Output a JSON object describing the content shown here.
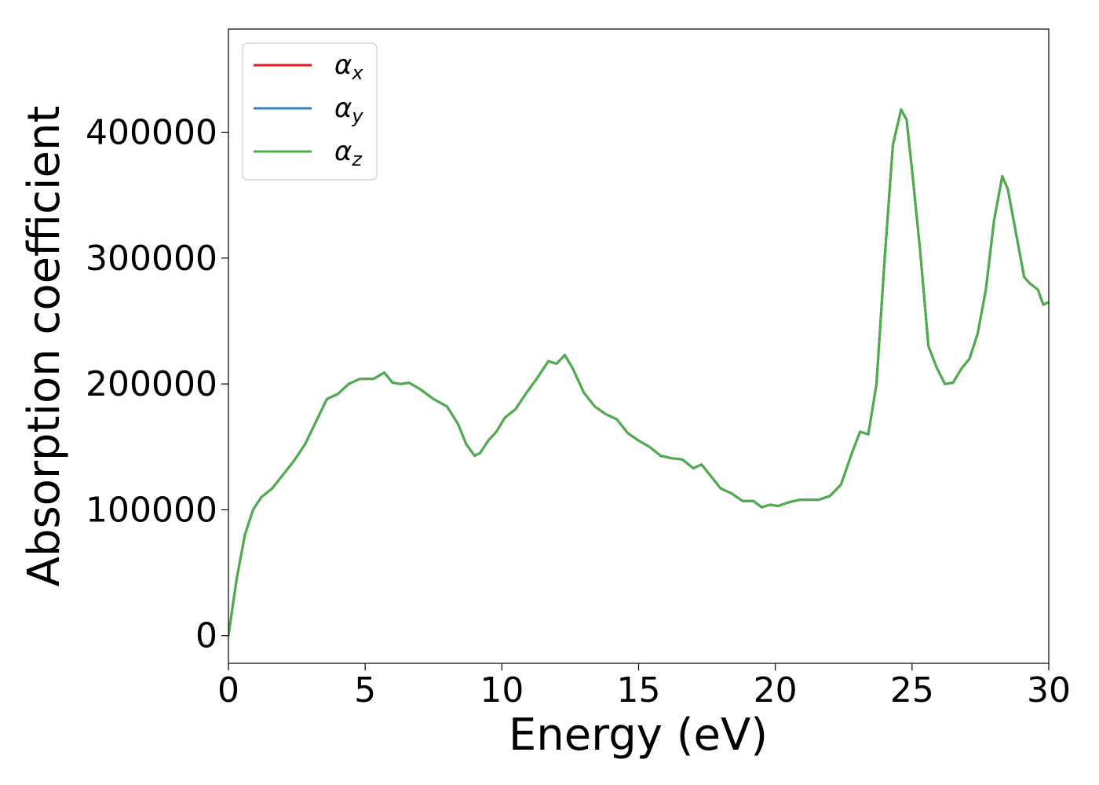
{
  "chart_data": {
    "type": "line",
    "title": "",
    "xlabel": "Energy (eV)",
    "ylabel": "Absorption coefficient",
    "xlim": [
      0,
      30
    ],
    "ylim": [
      -22000,
      482000
    ],
    "xticks": [
      0,
      5,
      10,
      15,
      20,
      25,
      30
    ],
    "xtick_labels": [
      "0",
      "5",
      "10",
      "15",
      "20",
      "25",
      "30"
    ],
    "yticks": [
      0,
      100000,
      200000,
      300000,
      400000
    ],
    "ytick_labels": [
      "0",
      "100000",
      "200000",
      "300000",
      "400000"
    ],
    "grid": false,
    "legend_position": "top-left",
    "series": [
      {
        "name": "αx",
        "symbol": "α",
        "subscript": "x",
        "color": "#e41a1c",
        "x": [
          0,
          0.1,
          0.3,
          0.6,
          0.9,
          1.2,
          1.6,
          2.0,
          2.4,
          2.8,
          3.2,
          3.6,
          4.0,
          4.4,
          4.8,
          5.0,
          5.3,
          5.7,
          6.0,
          6.3,
          6.6,
          7.0,
          7.5,
          8.0,
          8.4,
          8.7,
          9.0,
          9.2,
          9.5,
          9.8,
          10.1,
          10.5,
          10.9,
          11.3,
          11.7,
          12.0,
          12.3,
          12.6,
          13.0,
          13.4,
          13.8,
          14.2,
          14.6,
          15.0,
          15.4,
          15.8,
          16.2,
          16.6,
          17.0,
          17.3,
          17.6,
          18.0,
          18.4,
          18.8,
          19.2,
          19.5,
          19.8,
          20.1,
          20.5,
          20.9,
          21.3,
          21.6,
          22.0,
          22.4,
          22.8,
          23.1,
          23.4,
          23.7,
          24.0,
          24.3,
          24.6,
          24.8,
          25.0,
          25.3,
          25.6,
          25.9,
          26.2,
          26.5,
          26.8,
          27.1,
          27.4,
          27.7,
          28.0,
          28.3,
          28.5,
          28.8,
          29.1,
          29.3,
          29.6,
          29.8,
          30.0
        ],
        "y": [
          0,
          15000,
          45000,
          80000,
          100000,
          110000,
          117000,
          128000,
          139000,
          152000,
          170000,
          188000,
          192000,
          200000,
          204000,
          204000,
          204000,
          209000,
          201000,
          200000,
          201000,
          196000,
          188000,
          182000,
          168000,
          152000,
          143000,
          145000,
          155000,
          162000,
          173000,
          180000,
          193000,
          205000,
          218000,
          216000,
          223000,
          212000,
          193000,
          182000,
          176000,
          172000,
          161000,
          155000,
          150000,
          143000,
          141000,
          140000,
          133000,
          136000,
          128000,
          117000,
          113000,
          107000,
          107000,
          102000,
          104000,
          103000,
          106000,
          108000,
          108000,
          108000,
          111000,
          120000,
          145000,
          162000,
          160000,
          200000,
          300000,
          390000,
          418000,
          410000,
          370000,
          305000,
          230000,
          213000,
          200000,
          201000,
          212000,
          220000,
          240000,
          275000,
          330000,
          365000,
          355000,
          320000,
          285000,
          280000,
          275000,
          263000,
          265000
        ]
      },
      {
        "name": "αy",
        "symbol": "α",
        "subscript": "y",
        "color": "#377eb8",
        "x": [
          0,
          0.1,
          0.3,
          0.6,
          0.9,
          1.2,
          1.6,
          2.0,
          2.4,
          2.8,
          3.2,
          3.6,
          4.0,
          4.4,
          4.8,
          5.0,
          5.3,
          5.7,
          6.0,
          6.3,
          6.6,
          7.0,
          7.5,
          8.0,
          8.4,
          8.7,
          9.0,
          9.2,
          9.5,
          9.8,
          10.1,
          10.5,
          10.9,
          11.3,
          11.7,
          12.0,
          12.3,
          12.6,
          13.0,
          13.4,
          13.8,
          14.2,
          14.6,
          15.0,
          15.4,
          15.8,
          16.2,
          16.6,
          17.0,
          17.3,
          17.6,
          18.0,
          18.4,
          18.8,
          19.2,
          19.5,
          19.8,
          20.1,
          20.5,
          20.9,
          21.3,
          21.6,
          22.0,
          22.4,
          22.8,
          23.1,
          23.4,
          23.7,
          24.0,
          24.3,
          24.6,
          24.8,
          25.0,
          25.3,
          25.6,
          25.9,
          26.2,
          26.5,
          26.8,
          27.1,
          27.4,
          27.7,
          28.0,
          28.3,
          28.5,
          28.8,
          29.1,
          29.3,
          29.6,
          29.8,
          30.0
        ],
        "y": [
          0,
          15000,
          45000,
          80000,
          100000,
          110000,
          117000,
          128000,
          139000,
          152000,
          170000,
          188000,
          192000,
          200000,
          204000,
          204000,
          204000,
          209000,
          201000,
          200000,
          201000,
          196000,
          188000,
          182000,
          168000,
          152000,
          143000,
          145000,
          155000,
          162000,
          173000,
          180000,
          193000,
          205000,
          218000,
          216000,
          223000,
          212000,
          193000,
          182000,
          176000,
          172000,
          161000,
          155000,
          150000,
          143000,
          141000,
          140000,
          133000,
          136000,
          128000,
          117000,
          113000,
          107000,
          107000,
          102000,
          104000,
          103000,
          106000,
          108000,
          108000,
          108000,
          111000,
          120000,
          145000,
          162000,
          160000,
          200000,
          300000,
          390000,
          418000,
          410000,
          370000,
          305000,
          230000,
          213000,
          200000,
          201000,
          212000,
          220000,
          240000,
          275000,
          330000,
          365000,
          355000,
          320000,
          285000,
          280000,
          275000,
          263000,
          265000
        ]
      },
      {
        "name": "αz",
        "symbol": "α",
        "subscript": "z",
        "color": "#4daf4a",
        "x": [
          0,
          0.1,
          0.3,
          0.6,
          0.9,
          1.2,
          1.6,
          2.0,
          2.4,
          2.8,
          3.2,
          3.6,
          4.0,
          4.4,
          4.8,
          5.0,
          5.3,
          5.7,
          6.0,
          6.3,
          6.6,
          7.0,
          7.5,
          8.0,
          8.4,
          8.7,
          9.0,
          9.2,
          9.5,
          9.8,
          10.1,
          10.5,
          10.9,
          11.3,
          11.7,
          12.0,
          12.3,
          12.6,
          13.0,
          13.4,
          13.8,
          14.2,
          14.6,
          15.0,
          15.4,
          15.8,
          16.2,
          16.6,
          17.0,
          17.3,
          17.6,
          18.0,
          18.4,
          18.8,
          19.2,
          19.5,
          19.8,
          20.1,
          20.5,
          20.9,
          21.3,
          21.6,
          22.0,
          22.4,
          22.8,
          23.1,
          23.4,
          23.7,
          24.0,
          24.3,
          24.6,
          24.8,
          25.0,
          25.3,
          25.6,
          25.9,
          26.2,
          26.5,
          26.8,
          27.1,
          27.4,
          27.7,
          28.0,
          28.3,
          28.5,
          28.8,
          29.1,
          29.3,
          29.6,
          29.8,
          30.0
        ],
        "y": [
          0,
          15000,
          45000,
          80000,
          100000,
          110000,
          117000,
          128000,
          139000,
          152000,
          170000,
          188000,
          192000,
          200000,
          204000,
          204000,
          204000,
          209000,
          201000,
          200000,
          201000,
          196000,
          188000,
          182000,
          168000,
          152000,
          143000,
          145000,
          155000,
          162000,
          173000,
          180000,
          193000,
          205000,
          218000,
          216000,
          223000,
          212000,
          193000,
          182000,
          176000,
          172000,
          161000,
          155000,
          150000,
          143000,
          141000,
          140000,
          133000,
          136000,
          128000,
          117000,
          113000,
          107000,
          107000,
          102000,
          104000,
          103000,
          106000,
          108000,
          108000,
          108000,
          111000,
          120000,
          145000,
          162000,
          160000,
          200000,
          300000,
          390000,
          418000,
          410000,
          370000,
          305000,
          230000,
          213000,
          200000,
          201000,
          212000,
          220000,
          240000,
          275000,
          330000,
          365000,
          355000,
          320000,
          285000,
          280000,
          275000,
          263000,
          265000
        ]
      }
    ]
  }
}
